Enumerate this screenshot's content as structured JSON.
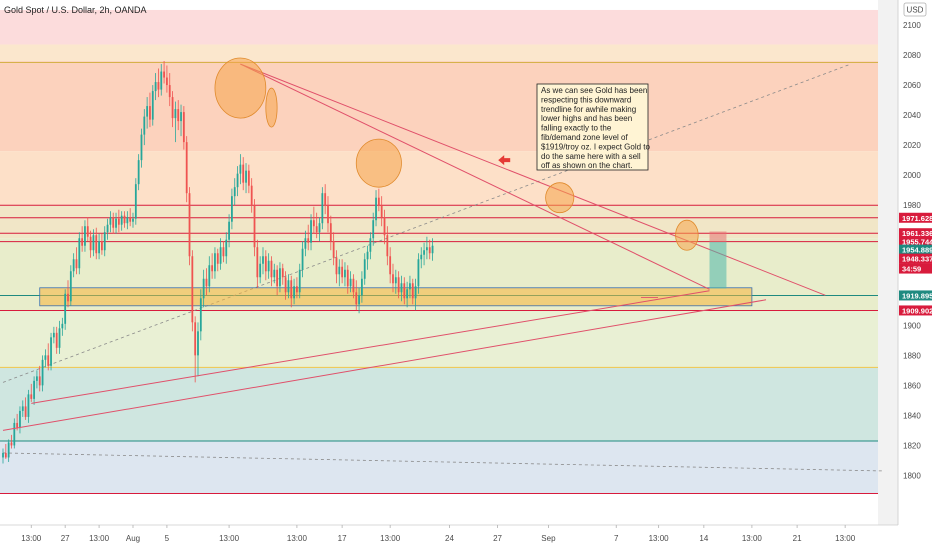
{
  "header": {
    "title": "Gold Spot / U.S. Dollar, 2h, OANDA",
    "currency_label": "USD"
  },
  "annotation": {
    "lines": [
      "As we can see Gold has been",
      "respecting this downward",
      "trendline for awhile making",
      "lower highs and has been",
      "falling exactly to the",
      "fib/demand zone level of",
      "$1919/troy oz. I expect Gold to",
      "do the same here with a sell",
      "off as shown on the chart."
    ]
  },
  "colors": {
    "candle_up": "#26a69a",
    "candle_down": "#ef5350",
    "trendline": "#e0506a",
    "level_red": "#d81b3c",
    "level_teal": "#1e8a80",
    "highlight_orange": "#f5a44a",
    "annotation_bg": "#fff4d4"
  },
  "chart_data": {
    "type": "candlestick",
    "ylim": [
      1785,
      2100
    ],
    "y_ticks": [
      1800,
      1820,
      1840,
      1860,
      1880,
      1900,
      1920,
      1940,
      1960,
      1980,
      2000,
      2020,
      2040,
      2060,
      2080
    ],
    "y_top_label": "2100",
    "x_ticks": [
      "13:00",
      "27",
      "13:00",
      "Aug",
      "5",
      "13:00",
      "13:00",
      "17",
      "13:00",
      "24",
      "27",
      "Sep",
      "7",
      "13:00",
      "14",
      "13:00",
      "21",
      "13:00"
    ],
    "x_tick_index": [
      10,
      22,
      34,
      46,
      58,
      80,
      104,
      120,
      137,
      158,
      175,
      193,
      217,
      232,
      248,
      265,
      281,
      298
    ],
    "x_range_index": [
      0,
      312
    ],
    "fib_bands": [
      {
        "from": 2087,
        "to": 2110,
        "color": "#fcdcdc"
      },
      {
        "from": 2076,
        "to": 2087,
        "color": "#fbe7cd"
      },
      {
        "from": 2016,
        "to": 2076,
        "color": "#fcd2bd"
      },
      {
        "from": 1980,
        "to": 2016,
        "color": "#fde0c8"
      },
      {
        "from": 1958,
        "to": 1980,
        "color": "#f1e6c7"
      },
      {
        "from": 1910,
        "to": 1958,
        "color": "#e8edcb"
      },
      {
        "from": 1872,
        "to": 1910,
        "color": "#e9f0d4"
      },
      {
        "from": 1823,
        "to": 1872,
        "color": "#cfe6e0"
      },
      {
        "from": 1788,
        "to": 1823,
        "color": "#dde6f0"
      }
    ],
    "horizontal_levels": [
      {
        "y": 2075,
        "color": "#d6b24a"
      },
      {
        "y": 1980,
        "color": "#d81b3c"
      },
      {
        "y": 1971.628,
        "color": "#d81b3c"
      },
      {
        "y": 1961.336,
        "color": "#d81b3c"
      },
      {
        "y": 1955.744,
        "color": "#d81b3c"
      },
      {
        "y": 1919.895,
        "color": "#1e8a80"
      },
      {
        "y": 1909.902,
        "color": "#d81b3c"
      },
      {
        "y": 1872,
        "color": "#f2c64a"
      },
      {
        "y": 1823,
        "color": "#1e8a80"
      },
      {
        "y": 1788,
        "color": "#d81b3c"
      }
    ],
    "price_labels": [
      {
        "value": "1971.628",
        "y": 1971.628,
        "color": "#d81b3c"
      },
      {
        "value": "1961.336",
        "y": 1961.336,
        "color": "#d81b3c"
      },
      {
        "value": "1955.744",
        "y": 1955.744,
        "color": "#d81b3c"
      },
      {
        "value": "1954.889",
        "y": 1950.4,
        "color": "#1e8a80"
      },
      {
        "value": "1948.337",
        "y": 1944.4,
        "color": "#d81b3c"
      },
      {
        "value": "34:59",
        "y": 1937.8,
        "color": "#d81b3c"
      },
      {
        "value": "1919.895",
        "y": 1919.895,
        "color": "#1e8a80"
      },
      {
        "value": "1909.902",
        "y": 1909.902,
        "color": "#d81b3c"
      }
    ],
    "demand_zone": {
      "x0": 13,
      "x1": 265,
      "y0": 1925,
      "y1": 1913
    },
    "trendlines": [
      {
        "x0": 84,
        "y0": 2074,
        "x1": 291,
        "y1": 1920
      },
      {
        "x0": 84,
        "y0": 2074,
        "x1": 250,
        "y1": 1924
      },
      {
        "x0": 10,
        "y0": 1848,
        "x1": 250,
        "y1": 1923
      },
      {
        "x0": 0,
        "y0": 1830,
        "x1": 270,
        "y1": 1917
      }
    ],
    "dotted_lines": [
      {
        "x0": 0,
        "y0": 1862,
        "x1": 300,
        "y1": 2074
      },
      {
        "x0": 0,
        "y0": 1815,
        "x1": 312,
        "y1": 1803
      }
    ],
    "highlight_circles": [
      {
        "x": 84,
        "y": 2058,
        "rx": 9,
        "ry": 20
      },
      {
        "x": 95,
        "y": 2045,
        "rx": 2,
        "ry": 13
      },
      {
        "x": 133,
        "y": 2008,
        "rx": 8,
        "ry": 16
      },
      {
        "x": 197,
        "y": 1985,
        "rx": 5,
        "ry": 10
      },
      {
        "x": 242,
        "y": 1960,
        "rx": 4,
        "ry": 10
      }
    ],
    "projection": {
      "x0": 250,
      "x1": 256,
      "y_top": 1962.5,
      "y_mid": 1955.5,
      "y_bottom": 1924.5
    },
    "close_markers": {
      "x": 230,
      "y": 1918.5
    },
    "red_arrow": {
      "x": 177,
      "y": 2010
    },
    "candles": [
      [
        1812,
        1818,
        1808,
        1815
      ],
      [
        1815,
        1821,
        1811,
        1812
      ],
      [
        1812,
        1824,
        1809,
        1822
      ],
      [
        1822,
        1827,
        1818,
        1820
      ],
      [
        1820,
        1838,
        1818,
        1835
      ],
      [
        1835,
        1841,
        1830,
        1832
      ],
      [
        1832,
        1846,
        1828,
        1843
      ],
      [
        1843,
        1850,
        1839,
        1846
      ],
      [
        1846,
        1852,
        1837,
        1839
      ],
      [
        1839,
        1857,
        1835,
        1854
      ],
      [
        1854,
        1861,
        1849,
        1851
      ],
      [
        1851,
        1866,
        1847,
        1863
      ],
      [
        1863,
        1870,
        1858,
        1866
      ],
      [
        1866,
        1873,
        1856,
        1860
      ],
      [
        1860,
        1880,
        1856,
        1877
      ],
      [
        1877,
        1884,
        1872,
        1880
      ],
      [
        1880,
        1888,
        1870,
        1873
      ],
      [
        1873,
        1895,
        1870,
        1892
      ],
      [
        1892,
        1899,
        1888,
        1895
      ],
      [
        1895,
        1899,
        1881,
        1885
      ],
      [
        1885,
        1903,
        1881,
        1898
      ],
      [
        1898,
        1905,
        1893,
        1901
      ],
      [
        1901,
        1924,
        1897,
        1921
      ],
      [
        1921,
        1930,
        1912,
        1916
      ],
      [
        1916,
        1940,
        1913,
        1936
      ],
      [
        1936,
        1948,
        1932,
        1944
      ],
      [
        1944,
        1952,
        1934,
        1938
      ],
      [
        1938,
        1962,
        1934,
        1958
      ],
      [
        1958,
        1966,
        1949,
        1953
      ],
      [
        1953,
        1970,
        1949,
        1966
      ],
      [
        1966,
        1972,
        1956,
        1959
      ],
      [
        1959,
        1963,
        1945,
        1950
      ],
      [
        1950,
        1964,
        1946,
        1960
      ],
      [
        1960,
        1965,
        1944,
        1948
      ],
      [
        1948,
        1961,
        1944,
        1956
      ],
      [
        1956,
        1961,
        1947,
        1950
      ],
      [
        1950,
        1966,
        1946,
        1962
      ],
      [
        1962,
        1971,
        1957,
        1967
      ],
      [
        1967,
        1976,
        1962,
        1972
      ],
      [
        1972,
        1975,
        1961,
        1965
      ],
      [
        1965,
        1975,
        1961,
        1971
      ],
      [
        1971,
        1977,
        1962,
        1967
      ],
      [
        1967,
        1976,
        1963,
        1973
      ],
      [
        1973,
        1976,
        1965,
        1968
      ],
      [
        1968,
        1976,
        1964,
        1972
      ],
      [
        1972,
        1978,
        1966,
        1969
      ],
      [
        1969,
        1975,
        1965,
        1971
      ],
      [
        1971,
        1998,
        1967,
        1994
      ],
      [
        1994,
        2014,
        1990,
        2010
      ],
      [
        2010,
        2031,
        2005,
        2027
      ],
      [
        2027,
        2044,
        2020,
        2039
      ],
      [
        2039,
        2052,
        2031,
        2046
      ],
      [
        2046,
        2055,
        2032,
        2037
      ],
      [
        2037,
        2060,
        2033,
        2056
      ],
      [
        2056,
        2068,
        2050,
        2062
      ],
      [
        2062,
        2071,
        2052,
        2057
      ],
      [
        2057,
        2074,
        2053,
        2069
      ],
      [
        2069,
        2076,
        2061,
        2065
      ],
      [
        2065,
        2073,
        2055,
        2060
      ],
      [
        2060,
        2068,
        2046,
        2052
      ],
      [
        2052,
        2056,
        2032,
        2038
      ],
      [
        2038,
        2049,
        2022,
        2044
      ],
      [
        2044,
        2050,
        2030,
        2036
      ],
      [
        2036,
        2047,
        2026,
        2042
      ],
      [
        2042,
        2046,
        2017,
        2022
      ],
      [
        2022,
        2026,
        1982,
        1988
      ],
      [
        1988,
        1992,
        1940,
        1946
      ],
      [
        1946,
        1950,
        1896,
        1902
      ],
      [
        1902,
        1906,
        1862,
        1880
      ],
      [
        1880,
        1902,
        1866,
        1896
      ],
      [
        1896,
        1924,
        1890,
        1918
      ],
      [
        1918,
        1937,
        1912,
        1931
      ],
      [
        1931,
        1938,
        1920,
        1926
      ],
      [
        1926,
        1946,
        1922,
        1940
      ],
      [
        1940,
        1948,
        1931,
        1936
      ],
      [
        1936,
        1952,
        1931,
        1948
      ],
      [
        1948,
        1951,
        1936,
        1941
      ],
      [
        1941,
        1958,
        1937,
        1952
      ],
      [
        1952,
        1956,
        1942,
        1946
      ],
      [
        1946,
        1962,
        1941,
        1957
      ],
      [
        1957,
        1974,
        1952,
        1969
      ],
      [
        1969,
        1991,
        1964,
        1986
      ],
      [
        1986,
        1998,
        1980,
        1992
      ],
      [
        1992,
        2006,
        1986,
        2001
      ],
      [
        2001,
        2014,
        1994,
        2007
      ],
      [
        2007,
        2012,
        1990,
        1995
      ],
      [
        1995,
        2008,
        1988,
        2003
      ],
      [
        2003,
        2007,
        1988,
        1993
      ],
      [
        1993,
        1998,
        1975,
        1980
      ],
      [
        1980,
        1984,
        1946,
        1952
      ],
      [
        1952,
        1957,
        1925,
        1932
      ],
      [
        1932,
        1946,
        1928,
        1941
      ],
      [
        1941,
        1952,
        1934,
        1946
      ],
      [
        1946,
        1950,
        1930,
        1936
      ],
      [
        1936,
        1948,
        1931,
        1943
      ],
      [
        1943,
        1946,
        1926,
        1932
      ],
      [
        1932,
        1941,
        1928,
        1937
      ],
      [
        1937,
        1940,
        1920,
        1926
      ],
      [
        1926,
        1942,
        1922,
        1938
      ],
      [
        1938,
        1941,
        1927,
        1932
      ],
      [
        1932,
        1936,
        1917,
        1922
      ],
      [
        1922,
        1934,
        1918,
        1930
      ],
      [
        1930,
        1933,
        1912,
        1918
      ],
      [
        1918,
        1931,
        1914,
        1926
      ],
      [
        1926,
        1932,
        1918,
        1922
      ],
      [
        1922,
        1941,
        1918,
        1937
      ],
      [
        1937,
        1956,
        1932,
        1951
      ],
      [
        1951,
        1963,
        1946,
        1958
      ],
      [
        1958,
        1967,
        1950,
        1955
      ],
      [
        1955,
        1974,
        1950,
        1970
      ],
      [
        1970,
        1979,
        1961,
        1966
      ],
      [
        1966,
        1975,
        1958,
        1962
      ],
      [
        1962,
        1972,
        1956,
        1968
      ],
      [
        1968,
        1992,
        1964,
        1988
      ],
      [
        1988,
        1994,
        1974,
        1980
      ],
      [
        1980,
        1986,
        1962,
        1968
      ],
      [
        1968,
        1973,
        1950,
        1956
      ],
      [
        1956,
        1962,
        1940,
        1945
      ],
      [
        1945,
        1950,
        1928,
        1934
      ],
      [
        1934,
        1944,
        1926,
        1939
      ],
      [
        1939,
        1944,
        1928,
        1932
      ],
      [
        1932,
        1942,
        1926,
        1937
      ],
      [
        1937,
        1940,
        1921,
        1926
      ],
      [
        1926,
        1936,
        1922,
        1931
      ],
      [
        1931,
        1934,
        1918,
        1922
      ],
      [
        1922,
        1930,
        1910,
        1914
      ],
      [
        1914,
        1925,
        1908,
        1920
      ],
      [
        1920,
        1936,
        1915,
        1931
      ],
      [
        1931,
        1948,
        1927,
        1944
      ],
      [
        1944,
        1953,
        1937,
        1949
      ],
      [
        1949,
        1962,
        1944,
        1958
      ],
      [
        1958,
        1975,
        1953,
        1970
      ],
      [
        1970,
        1990,
        1966,
        1985
      ],
      [
        1985,
        1991,
        1976,
        1980
      ],
      [
        1980,
        1986,
        1966,
        1972
      ],
      [
        1972,
        1977,
        1954,
        1960
      ],
      [
        1960,
        1966,
        1940,
        1946
      ],
      [
        1946,
        1952,
        1928,
        1934
      ],
      [
        1934,
        1941,
        1922,
        1928
      ],
      [
        1928,
        1937,
        1921,
        1932
      ],
      [
        1932,
        1936,
        1918,
        1922
      ],
      [
        1922,
        1933,
        1916,
        1928
      ],
      [
        1928,
        1932,
        1914,
        1918
      ],
      [
        1918,
        1929,
        1912,
        1924
      ],
      [
        1924,
        1933,
        1918,
        1928
      ],
      [
        1928,
        1931,
        1914,
        1918
      ],
      [
        1918,
        1931,
        1910,
        1926
      ],
      [
        1926,
        1948,
        1921,
        1944
      ],
      [
        1944,
        1952,
        1938,
        1947
      ],
      [
        1947,
        1955,
        1940,
        1950
      ],
      [
        1950,
        1959,
        1944,
        1952
      ],
      [
        1952,
        1957,
        1944,
        1948
      ],
      [
        1948,
        1958,
        1943,
        1953
      ]
    ]
  }
}
